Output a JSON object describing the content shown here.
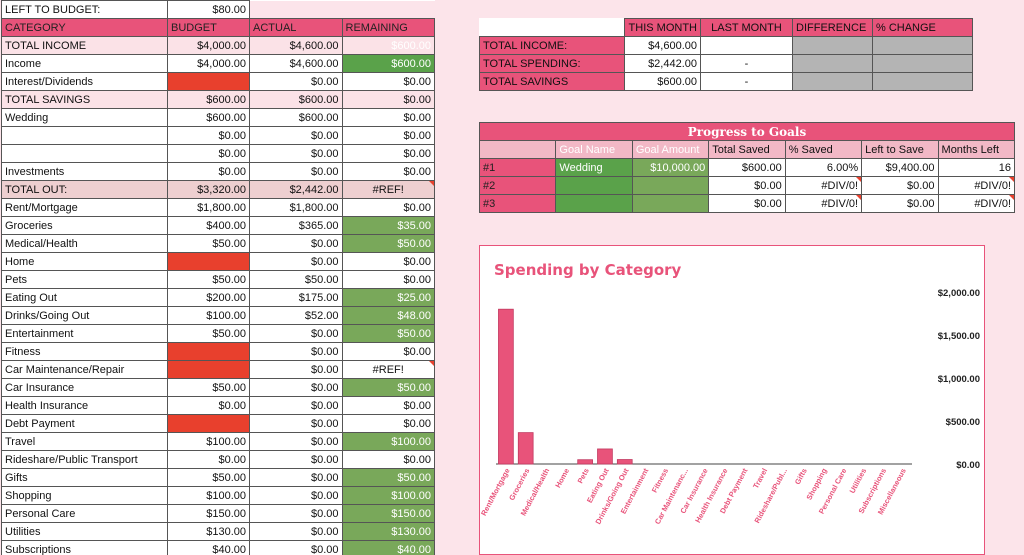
{
  "budget": {
    "left_label": "LEFT TO BUDGET:",
    "left_value": "$80.00",
    "headers": [
      "CATEGORY",
      "BUDGET",
      "ACTUAL",
      "REMAINING"
    ],
    "rows": [
      {
        "cat": "TOTAL INCOME",
        "budget": "$4,000.00",
        "actual": "$4,600.00",
        "remaining": "$600.00",
        "style": "light",
        "rem": "g1"
      },
      {
        "cat": "Income",
        "budget": "$4,000.00",
        "actual": "$4,600.00",
        "remaining": "$600.00",
        "rem": "g1"
      },
      {
        "cat": "Interest/Dividends",
        "budget": "",
        "actual": "$0.00",
        "remaining": "$0.00",
        "bud": "red"
      },
      {
        "cat": "TOTAL SAVINGS",
        "budget": "$600.00",
        "actual": "$600.00",
        "remaining": "$0.00",
        "style": "light"
      },
      {
        "cat": "Wedding",
        "budget": "$600.00",
        "actual": "$600.00",
        "remaining": "$0.00"
      },
      {
        "cat": "",
        "budget": "$0.00",
        "actual": "$0.00",
        "remaining": "$0.00"
      },
      {
        "cat": "",
        "budget": "$0.00",
        "actual": "$0.00",
        "remaining": "$0.00"
      },
      {
        "cat": "Investments",
        "budget": "$0.00",
        "actual": "$0.00",
        "remaining": "$0.00"
      },
      {
        "cat": "TOTAL OUT:",
        "budget": "$3,320.00",
        "actual": "$2,442.00",
        "remaining": "#REF!",
        "style": "mid",
        "remc": "center",
        "flag": true
      },
      {
        "cat": "Rent/Mortgage",
        "budget": "$1,800.00",
        "actual": "$1,800.00",
        "remaining": "$0.00"
      },
      {
        "cat": "Groceries",
        "budget": "$400.00",
        "actual": "$365.00",
        "remaining": "$35.00",
        "rem": "g2"
      },
      {
        "cat": "Medical/Health",
        "budget": "$50.00",
        "actual": "$0.00",
        "remaining": "$50.00",
        "rem": "g2"
      },
      {
        "cat": "Home",
        "budget": "",
        "actual": "$0.00",
        "remaining": "$0.00",
        "bud": "red"
      },
      {
        "cat": "Pets",
        "budget": "$50.00",
        "actual": "$50.00",
        "remaining": "$0.00"
      },
      {
        "cat": "Eating Out",
        "budget": "$200.00",
        "actual": "$175.00",
        "remaining": "$25.00",
        "rem": "g2"
      },
      {
        "cat": "Drinks/Going Out",
        "budget": "$100.00",
        "actual": "$52.00",
        "remaining": "$48.00",
        "rem": "g2"
      },
      {
        "cat": "Entertainment",
        "budget": "$50.00",
        "actual": "$0.00",
        "remaining": "$50.00",
        "rem": "g2"
      },
      {
        "cat": "Fitness",
        "budget": "",
        "actual": "$0.00",
        "remaining": "$0.00",
        "bud": "red"
      },
      {
        "cat": "Car Maintenance/Repair",
        "budget": "",
        "actual": "$0.00",
        "remaining": "#REF!",
        "bud": "red",
        "remc": "center",
        "flag": true
      },
      {
        "cat": "Car Insurance",
        "budget": "$50.00",
        "actual": "$0.00",
        "remaining": "$50.00",
        "rem": "g2"
      },
      {
        "cat": "Health Insurance",
        "budget": "$0.00",
        "actual": "$0.00",
        "remaining": "$0.00"
      },
      {
        "cat": "Debt Payment",
        "budget": "",
        "actual": "$0.00",
        "remaining": "$0.00",
        "bud": "red"
      },
      {
        "cat": "Travel",
        "budget": "$100.00",
        "actual": "$0.00",
        "remaining": "$100.00",
        "rem": "g2"
      },
      {
        "cat": "Rideshare/Public Transport",
        "budget": "$0.00",
        "actual": "$0.00",
        "remaining": "$0.00"
      },
      {
        "cat": "Gifts",
        "budget": "$50.00",
        "actual": "$0.00",
        "remaining": "$50.00",
        "rem": "g2"
      },
      {
        "cat": "Shopping",
        "budget": "$100.00",
        "actual": "$0.00",
        "remaining": "$100.00",
        "rem": "g2"
      },
      {
        "cat": "Personal Care",
        "budget": "$150.00",
        "actual": "$0.00",
        "remaining": "$150.00",
        "rem": "g2"
      },
      {
        "cat": "Utilities",
        "budget": "$130.00",
        "actual": "$0.00",
        "remaining": "$130.00",
        "rem": "g2"
      },
      {
        "cat": "Subscriptions",
        "budget": "$40.00",
        "actual": "$0.00",
        "remaining": "$40.00",
        "rem": "g2"
      }
    ]
  },
  "summary": {
    "headers": [
      "",
      "THIS MONTH",
      "LAST MONTH",
      "DIFFERENCE",
      "% CHANGE"
    ],
    "rows": [
      {
        "label": "TOTAL INCOME:",
        "this": "$4,600.00",
        "last": ""
      },
      {
        "label": "TOTAL SPENDING:",
        "this": "$2,442.00",
        "last": "-"
      },
      {
        "label": "TOTAL SAVINGS",
        "this": "$600.00",
        "last": "-"
      }
    ]
  },
  "goals": {
    "title": "Progress to Goals",
    "headers": [
      "",
      "Goal Name",
      "Goal Amount",
      "Total Saved",
      "% Saved",
      "Left to Save",
      "Months Left"
    ],
    "rows": [
      {
        "num": "#1",
        "name": "Wedding",
        "amount": "$10,000.00",
        "saved": "$600.00",
        "pct": "6.00%",
        "left": "$9,400.00",
        "months": "16"
      },
      {
        "num": "#2",
        "name": "",
        "amount": "",
        "saved": "$0.00",
        "pct": "#DIV/0!",
        "left": "$0.00",
        "months": "#DIV/0!"
      },
      {
        "num": "#3",
        "name": "",
        "amount": "",
        "saved": "$0.00",
        "pct": "#DIV/0!",
        "left": "$0.00",
        "months": "#DIV/0!"
      }
    ]
  },
  "chart_data": {
    "type": "bar",
    "title": "Spending by Category",
    "xlabel": "",
    "ylabel": "",
    "ylim": [
      0,
      2000
    ],
    "yticks": [
      "$0.00",
      "$500.00",
      "$1,000.00",
      "$1,500.00",
      "$2,000.00"
    ],
    "bar_color": "#e8537a",
    "categories": [
      "Rent/Mortgage",
      "Groceries",
      "Medical/Health",
      "Home",
      "Pets",
      "Eating Out",
      "Drinks/Going Out",
      "Entertainment",
      "Fitness",
      "Car Maintenanc...",
      "Car Insurance",
      "Health Insurance",
      "Debt Payment",
      "Travel",
      "Rideshare/Publ...",
      "Gifts",
      "Shopping",
      "Personal Care",
      "Utilities",
      "Subscriptions",
      "Miscellaneous"
    ],
    "values": [
      1800,
      365,
      0,
      0,
      50,
      175,
      52,
      0,
      0,
      0,
      0,
      0,
      0,
      0,
      0,
      0,
      0,
      0,
      0,
      0,
      0
    ]
  }
}
